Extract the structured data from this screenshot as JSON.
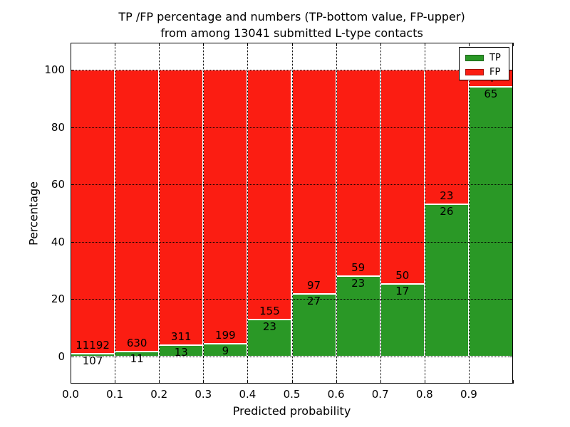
{
  "figure": {
    "title_line1": "TP /FP percentage and numbers (TP-bottom value, FP-upper)",
    "title_line2": "from among 13041 submitted L-type contacts"
  },
  "legend": {
    "position": "upper right",
    "items": [
      {
        "label": "TP",
        "color": "#2a9826"
      },
      {
        "label": "FP",
        "color": "#fb1d12"
      }
    ]
  },
  "chart_data": {
    "type": "bar",
    "stacked": true,
    "title": "TP /FP percentage and numbers (TP-bottom value, FP-upper)\nfrom among 13041 submitted L-type contacts",
    "xlabel": "Predicted probability",
    "ylabel": "Percentage",
    "total_contacts": 13041,
    "categories": [
      "0.0",
      "0.1",
      "0.2",
      "0.3",
      "0.4",
      "0.5",
      "0.6",
      "0.7",
      "0.8",
      "0.9"
    ],
    "bin_width": 0.1,
    "series": [
      {
        "name": "TP",
        "color": "#2a9826",
        "counts": [
          107,
          11,
          13,
          9,
          23,
          27,
          23,
          17,
          26,
          65
        ],
        "percent": [
          0.95,
          1.72,
          4.01,
          4.33,
          12.92,
          21.77,
          28.05,
          25.37,
          53.06,
          94.2
        ]
      },
      {
        "name": "FP",
        "color": "#fb1d12",
        "counts": [
          11192,
          630,
          311,
          199,
          155,
          97,
          59,
          50,
          23,
          4
        ],
        "percent": [
          99.05,
          98.28,
          95.99,
          95.67,
          87.08,
          78.23,
          71.95,
          74.63,
          46.94,
          5.8
        ]
      }
    ],
    "bar_note": "stacked to 100% per bin; labels show raw counts, TP below boundary, FP above",
    "x_tick_labels": [
      "0.0",
      "0.1",
      "0.2",
      "0.3",
      "0.4",
      "0.5",
      "0.6",
      "0.7",
      "0.8",
      "0.9"
    ],
    "y_ticks": [
      0,
      20,
      40,
      60,
      80,
      100
    ],
    "xlim": [
      0,
      1.0
    ],
    "ylim": [
      -9.5,
      109.5
    ],
    "grid": true,
    "grid_style": "dotted",
    "bar_edge_color": "#ffffff",
    "legend_position": "upper right"
  }
}
